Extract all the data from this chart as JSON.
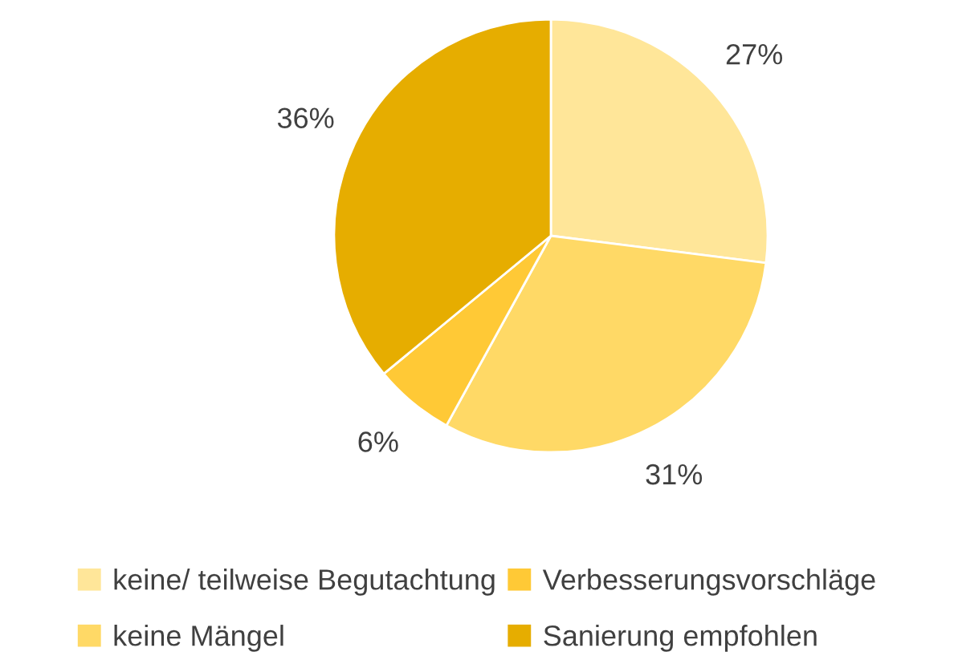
{
  "chart_data": {
    "type": "pie",
    "categories": [
      "keine/ teilweise Begutachtung",
      "keine Mängel",
      "Verbesserungsvorschläge",
      "Sanierung empfohlen"
    ],
    "values": [
      27,
      31,
      6,
      36
    ],
    "colors": [
      "#ffe699",
      "#ffd966",
      "#ffc936",
      "#e6ad00"
    ],
    "value_labels": [
      "27%",
      "31%",
      "6%",
      "36%"
    ],
    "legend": "bottom"
  }
}
